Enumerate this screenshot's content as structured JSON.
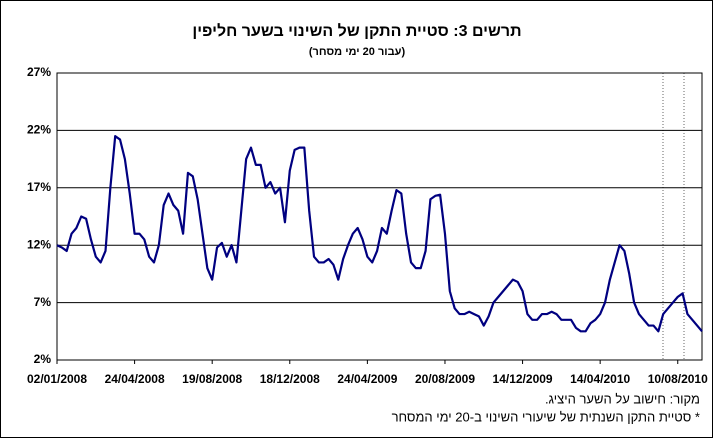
{
  "chart_data": {
    "type": "line",
    "title": "תרשים 3: סטיית התקן של השינוי בשער חליפין",
    "subtitle": "(עבור 20 ימי מסחר)",
    "notes": [
      "מקור: חישוב על השער היציג.",
      "* סטיית התקן השנתית של שיעורי השינוי ב-20 ימי המסחר"
    ],
    "color": "#000080",
    "categories": [
      "02/01/2008",
      null,
      null,
      null,
      null,
      null,
      null,
      null,
      null,
      null,
      null,
      null,
      null,
      null,
      null,
      null,
      "24/04/2008",
      null,
      null,
      null,
      null,
      null,
      null,
      null,
      null,
      null,
      null,
      null,
      null,
      null,
      null,
      null,
      "19/08/2008",
      null,
      null,
      null,
      null,
      null,
      null,
      null,
      null,
      null,
      null,
      null,
      null,
      null,
      null,
      null,
      "18/12/2008",
      null,
      null,
      null,
      null,
      null,
      null,
      null,
      null,
      null,
      null,
      null,
      null,
      null,
      null,
      null,
      "24/04/2009",
      null,
      null,
      null,
      null,
      null,
      null,
      null,
      null,
      null,
      null,
      null,
      null,
      null,
      null,
      null,
      "20/08/2009",
      null,
      null,
      null,
      null,
      null,
      null,
      null,
      null,
      null,
      null,
      null,
      null,
      null,
      null,
      null,
      "14/12/2009",
      null,
      null,
      null,
      null,
      null,
      null,
      null,
      null,
      null,
      null,
      null,
      null,
      null,
      null,
      null,
      "14/04/2010",
      null,
      null,
      null,
      null,
      null,
      null,
      null,
      null,
      null,
      null,
      null,
      null,
      null,
      null,
      null,
      "10/08/2010",
      null,
      null,
      null,
      null,
      null
    ],
    "values": [
      12,
      11.8,
      11.5,
      13,
      13.5,
      14.5,
      14.3,
      12.5,
      11,
      10.5,
      11.5,
      17,
      21.5,
      21.2,
      19.5,
      16.5,
      13,
      13,
      12.5,
      11,
      10.5,
      12,
      15.5,
      16.5,
      15.5,
      15,
      13,
      18.3,
      18,
      16,
      13,
      10,
      9,
      11.8,
      12.2,
      11,
      12,
      10.5,
      15,
      19.5,
      20.5,
      19,
      19,
      17,
      17.5,
      16.5,
      17,
      14,
      18.5,
      20.3,
      20.5,
      20.5,
      15,
      11,
      10.5,
      10.5,
      10.8,
      10.3,
      9,
      10.8,
      12,
      13,
      13.5,
      12.5,
      11,
      10.5,
      11.5,
      13.5,
      13,
      15,
      16.8,
      16.5,
      13,
      10.5,
      10,
      10,
      11.5,
      16,
      16.3,
      16.4,
      13,
      8,
      6.5,
      6,
      6,
      6.2,
      6,
      5.8,
      5,
      5.8,
      7,
      7.5,
      8,
      8.5,
      9,
      8.8,
      8,
      6,
      5.5,
      5.5,
      6,
      6,
      6.2,
      6,
      5.5,
      5.5,
      5.5,
      4.8,
      4.5,
      4.5,
      5.2,
      5.5,
      6,
      7,
      9,
      10.5,
      12,
      11.5,
      9.5,
      7,
      6,
      5.5,
      5,
      5,
      4.5,
      6,
      6.5,
      7,
      7.5,
      7.8,
      6,
      5.5,
      5,
      4.5
    ],
    "ylim": [
      2,
      27
    ],
    "yticks": [
      {
        "value": 2,
        "label": "2%"
      },
      {
        "value": 7,
        "label": "7%"
      },
      {
        "value": 12,
        "label": "12%"
      },
      {
        "value": 17,
        "label": "17%"
      },
      {
        "value": 22,
        "label": "22%"
      },
      {
        "value": 27,
        "label": "27%"
      }
    ],
    "grid": true
  }
}
